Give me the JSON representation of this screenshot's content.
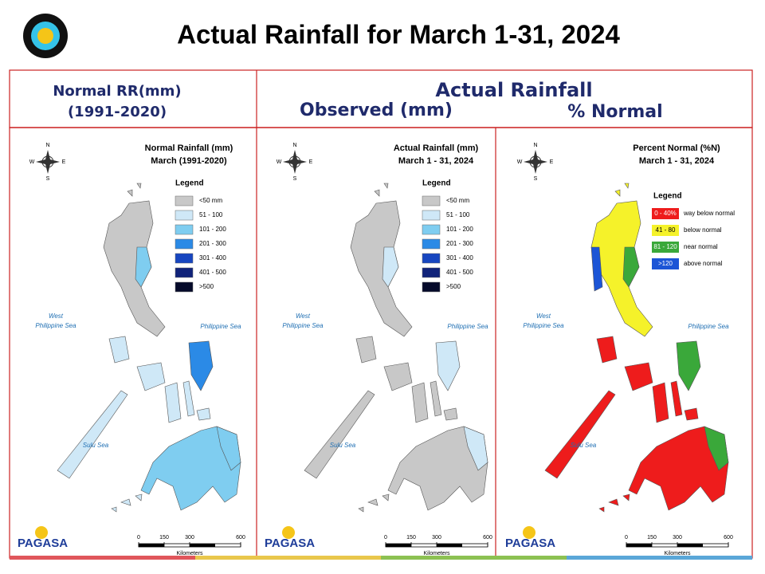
{
  "title": "Actual Rainfall for March 1-31, 2024",
  "header": {
    "normal_label": "Normal RR(mm)",
    "normal_period": "(1991-2020)",
    "actual_label": "Actual Rainfall",
    "observed_label": "Observed (mm)",
    "percent_label": "% Normal"
  },
  "map_common": {
    "compass": {
      "north": "N",
      "east": "E",
      "south": "S",
      "west": "W"
    },
    "seas": {
      "west_line1": "West",
      "west_line2": "Philippine Sea",
      "east": "Philippine Sea",
      "sulu": "Sulu Sea"
    },
    "scale": [
      0,
      150,
      300,
      600
    ],
    "scale_unit": "Kilometers",
    "logo": "PAGASA"
  },
  "panels": [
    {
      "title": "Normal Rainfall (mm)",
      "subtitle": "March (1991-2020)",
      "legend_title": "Legend",
      "legend": [
        {
          "label": "<50 mm",
          "color": "#c8c8c8"
        },
        {
          "label": "51 - 100",
          "color": "#cfe8f7"
        },
        {
          "label": "101 - 200",
          "color": "#7fcdf0"
        },
        {
          "label": "201 - 300",
          "color": "#2b8ae6"
        },
        {
          "label": "301 - 400",
          "color": "#1746c0"
        },
        {
          "label": "401 - 500",
          "color": "#10237a"
        },
        {
          "label": ">500",
          "color": "#050a2a"
        }
      ]
    },
    {
      "title": "Actual Rainfall (mm)",
      "subtitle": "March 1 - 31, 2024",
      "legend_title": "Legend",
      "legend": [
        {
          "label": "<50 mm",
          "color": "#c8c8c8"
        },
        {
          "label": "51 - 100",
          "color": "#cfe8f7"
        },
        {
          "label": "101 - 200",
          "color": "#7fcdf0"
        },
        {
          "label": "201 - 300",
          "color": "#2b8ae6"
        },
        {
          "label": "301 - 400",
          "color": "#1746c0"
        },
        {
          "label": "401 - 500",
          "color": "#10237a"
        },
        {
          "label": ">500",
          "color": "#050a2a"
        }
      ]
    },
    {
      "title": "Percent Normal (%N)",
      "subtitle": "March 1 - 31, 2024",
      "legend_title": "Legend",
      "legend": [
        {
          "label": "0 - 40%",
          "description": "way below normal",
          "color": "#ee1c1c"
        },
        {
          "label": "41 - 80",
          "description": "below normal",
          "color": "#f5f22a"
        },
        {
          "label": "81 - 120",
          "description": "near normal",
          "color": "#3aa83a"
        },
        {
          "label": ">120",
          "description": "above normal",
          "color": "#1c55d6"
        }
      ]
    }
  ]
}
